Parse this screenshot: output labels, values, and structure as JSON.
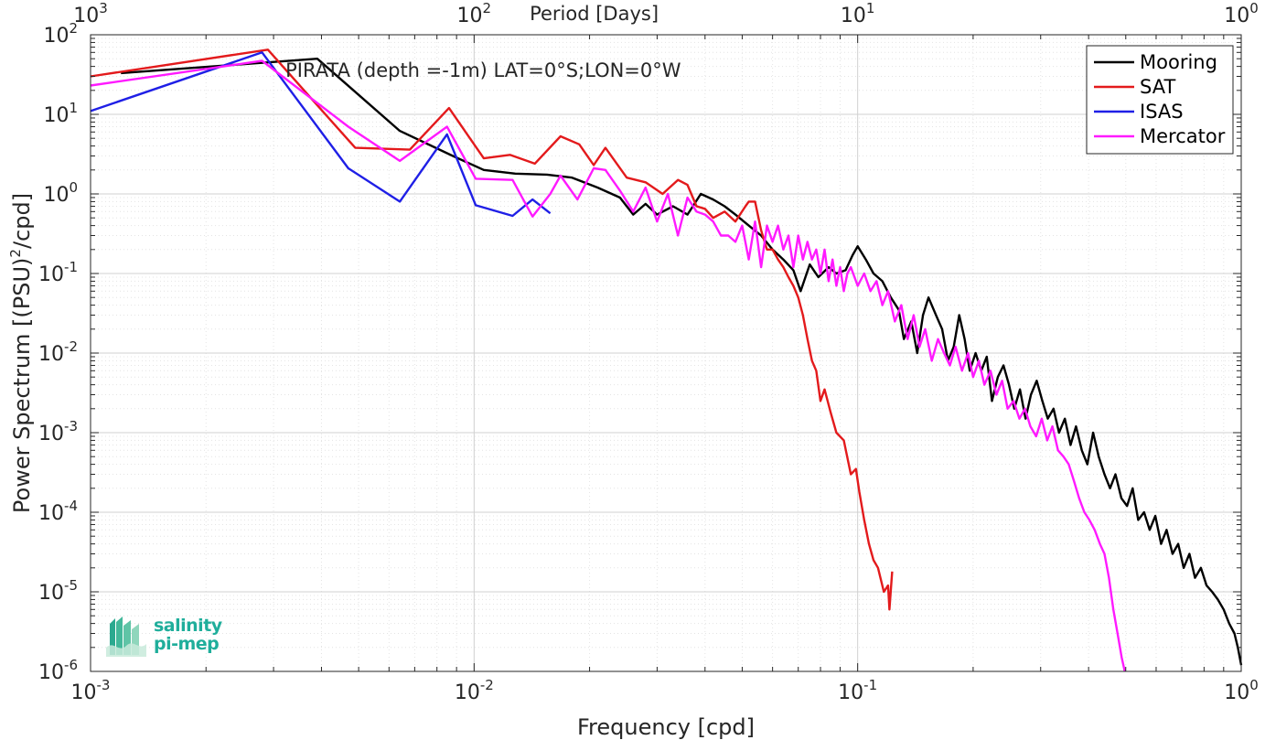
{
  "chart_data": {
    "type": "line",
    "title": "PIRATA (depth =-1m) LAT=0°S;LON=0°W",
    "xlabel": "Frequency [cpd]",
    "ylabel": "Power Spectrum [(PSU)^2/cpd]",
    "top_axis_label": "Period [Days]",
    "xscale": "log",
    "yscale": "log",
    "xlim": [
      0.001,
      1
    ],
    "ylim": [
      1e-06,
      100
    ],
    "grid": true,
    "legend_position": "top-right",
    "x_ticks": [
      {
        "value": 0.001,
        "base": "10",
        "exp": "-3"
      },
      {
        "value": 0.01,
        "base": "10",
        "exp": "-2"
      },
      {
        "value": 0.1,
        "base": "10",
        "exp": "-1"
      },
      {
        "value": 1,
        "base": "10",
        "exp": "0"
      }
    ],
    "top_ticks": [
      {
        "value": 0.001,
        "base": "10",
        "exp": "3"
      },
      {
        "value": 0.01,
        "base": "10",
        "exp": "2"
      },
      {
        "value": 0.1,
        "base": "10",
        "exp": "1"
      },
      {
        "value": 1,
        "base": "10",
        "exp": "0"
      }
    ],
    "y_ticks": [
      {
        "value": 100,
        "base": "10",
        "exp": "2"
      },
      {
        "value": 10,
        "base": "10",
        "exp": "1"
      },
      {
        "value": 1,
        "base": "10",
        "exp": "0"
      },
      {
        "value": 0.1,
        "base": "10",
        "exp": "-1"
      },
      {
        "value": 0.01,
        "base": "10",
        "exp": "-2"
      },
      {
        "value": 0.001,
        "base": "10",
        "exp": "-3"
      },
      {
        "value": 0.0001,
        "base": "10",
        "exp": "-4"
      },
      {
        "value": 1e-05,
        "base": "10",
        "exp": "-5"
      },
      {
        "value": 1e-06,
        "base": "10",
        "exp": "-6"
      }
    ],
    "series": [
      {
        "name": "Mooring",
        "color": "#000000",
        "points": [
          [
            0.0012,
            33
          ],
          [
            0.0029,
            45
          ],
          [
            0.0039,
            50
          ],
          [
            0.0064,
            6.2
          ],
          [
            0.0088,
            3.0
          ],
          [
            0.0106,
            2.0
          ],
          [
            0.0128,
            1.8
          ],
          [
            0.0155,
            1.75
          ],
          [
            0.018,
            1.6
          ],
          [
            0.021,
            1.2
          ],
          [
            0.024,
            0.9
          ],
          [
            0.026,
            0.55
          ],
          [
            0.028,
            0.75
          ],
          [
            0.03,
            0.55
          ],
          [
            0.033,
            0.7
          ],
          [
            0.036,
            0.55
          ],
          [
            0.039,
            1.0
          ],
          [
            0.042,
            0.85
          ],
          [
            0.045,
            0.7
          ],
          [
            0.048,
            0.55
          ],
          [
            0.052,
            0.4
          ],
          [
            0.056,
            0.3
          ],
          [
            0.06,
            0.2
          ],
          [
            0.064,
            0.15
          ],
          [
            0.068,
            0.11
          ],
          [
            0.071,
            0.06
          ],
          [
            0.075,
            0.13
          ],
          [
            0.079,
            0.09
          ],
          [
            0.084,
            0.12
          ],
          [
            0.088,
            0.1
          ],
          [
            0.093,
            0.11
          ],
          [
            0.097,
            0.17
          ],
          [
            0.1,
            0.22
          ],
          [
            0.105,
            0.15
          ],
          [
            0.11,
            0.1
          ],
          [
            0.116,
            0.08
          ],
          [
            0.122,
            0.05
          ],
          [
            0.128,
            0.035
          ],
          [
            0.132,
            0.015
          ],
          [
            0.138,
            0.025
          ],
          [
            0.143,
            0.01
          ],
          [
            0.148,
            0.03
          ],
          [
            0.153,
            0.05
          ],
          [
            0.16,
            0.03
          ],
          [
            0.166,
            0.02
          ],
          [
            0.172,
            0.008
          ],
          [
            0.178,
            0.012
          ],
          [
            0.184,
            0.03
          ],
          [
            0.19,
            0.015
          ],
          [
            0.196,
            0.006
          ],
          [
            0.203,
            0.01
          ],
          [
            0.21,
            0.006
          ],
          [
            0.217,
            0.009
          ],
          [
            0.224,
            0.0025
          ],
          [
            0.232,
            0.005
          ],
          [
            0.24,
            0.007
          ],
          [
            0.248,
            0.004
          ],
          [
            0.256,
            0.002
          ],
          [
            0.265,
            0.0035
          ],
          [
            0.274,
            0.0015
          ],
          [
            0.283,
            0.003
          ],
          [
            0.293,
            0.0045
          ],
          [
            0.303,
            0.0025
          ],
          [
            0.313,
            0.0015
          ],
          [
            0.324,
            0.002
          ],
          [
            0.335,
            0.001
          ],
          [
            0.347,
            0.0015
          ],
          [
            0.359,
            0.0007
          ],
          [
            0.371,
            0.0012
          ],
          [
            0.384,
            0.0006
          ],
          [
            0.397,
            0.0004
          ],
          [
            0.411,
            0.001
          ],
          [
            0.425,
            0.0005
          ],
          [
            0.44,
            0.0003
          ],
          [
            0.455,
            0.0002
          ],
          [
            0.47,
            0.0003
          ],
          [
            0.487,
            0.00015
          ],
          [
            0.504,
            0.00012
          ],
          [
            0.521,
            0.0002
          ],
          [
            0.539,
            8e-05
          ],
          [
            0.558,
            0.0001
          ],
          [
            0.577,
            6e-05
          ],
          [
            0.597,
            9e-05
          ],
          [
            0.618,
            4e-05
          ],
          [
            0.639,
            6e-05
          ],
          [
            0.662,
            3e-05
          ],
          [
            0.685,
            4e-05
          ],
          [
            0.708,
            2e-05
          ],
          [
            0.733,
            3e-05
          ],
          [
            0.758,
            1.5e-05
          ],
          [
            0.785,
            2e-05
          ],
          [
            0.812,
            1.2e-05
          ],
          [
            0.84,
            1e-05
          ],
          [
            0.869,
            8e-06
          ],
          [
            0.9,
            6e-06
          ],
          [
            0.93,
            4e-06
          ],
          [
            0.96,
            3e-06
          ],
          [
            0.98,
            2e-06
          ],
          [
            1.0,
            1.2e-06
          ]
        ]
      },
      {
        "name": "SAT",
        "color": "#e31a1c",
        "points": [
          [
            0.001,
            30
          ],
          [
            0.0029,
            65
          ],
          [
            0.0038,
            15
          ],
          [
            0.0049,
            3.8
          ],
          [
            0.0068,
            3.6
          ],
          [
            0.0086,
            12
          ],
          [
            0.0106,
            2.8
          ],
          [
            0.0124,
            3.1
          ],
          [
            0.0144,
            2.4
          ],
          [
            0.0168,
            5.3
          ],
          [
            0.0188,
            4.2
          ],
          [
            0.0205,
            2.3
          ],
          [
            0.022,
            3.8
          ],
          [
            0.025,
            1.6
          ],
          [
            0.028,
            1.4
          ],
          [
            0.031,
            1.0
          ],
          [
            0.034,
            1.5
          ],
          [
            0.036,
            1.3
          ],
          [
            0.038,
            0.7
          ],
          [
            0.04,
            0.65
          ],
          [
            0.042,
            0.5
          ],
          [
            0.045,
            0.6
          ],
          [
            0.048,
            0.45
          ],
          [
            0.051,
            0.7
          ],
          [
            0.052,
            0.8
          ],
          [
            0.054,
            0.8
          ],
          [
            0.056,
            0.35
          ],
          [
            0.058,
            0.2
          ],
          [
            0.06,
            0.2
          ],
          [
            0.062,
            0.15
          ],
          [
            0.064,
            0.12
          ],
          [
            0.066,
            0.09
          ],
          [
            0.068,
            0.07
          ],
          [
            0.07,
            0.05
          ],
          [
            0.072,
            0.03
          ],
          [
            0.074,
            0.015
          ],
          [
            0.076,
            0.008
          ],
          [
            0.078,
            0.006
          ],
          [
            0.08,
            0.0025
          ],
          [
            0.082,
            0.0035
          ],
          [
            0.085,
            0.0018
          ],
          [
            0.088,
            0.001
          ],
          [
            0.092,
            0.0008
          ],
          [
            0.096,
            0.0003
          ],
          [
            0.099,
            0.00035
          ],
          [
            0.101,
            0.00018
          ],
          [
            0.104,
            8e-05
          ],
          [
            0.107,
            4e-05
          ],
          [
            0.11,
            2.5e-05
          ],
          [
            0.113,
            2e-05
          ],
          [
            0.117,
            1e-05
          ],
          [
            0.12,
            1.2e-05
          ],
          [
            0.121,
            6e-06
          ],
          [
            0.123,
            1.8e-05
          ]
        ]
      },
      {
        "name": "ISAS",
        "color": "#1f1fe6",
        "points": [
          [
            0.001,
            11
          ],
          [
            0.0028,
            60
          ],
          [
            0.0047,
            2.1
          ],
          [
            0.0064,
            0.8
          ],
          [
            0.0085,
            5.6
          ],
          [
            0.0101,
            0.72
          ],
          [
            0.0126,
            0.53
          ],
          [
            0.0142,
            0.85
          ],
          [
            0.0158,
            0.57
          ]
        ]
      },
      {
        "name": "Mercator",
        "color": "#ff1aff",
        "points": [
          [
            0.001,
            23
          ],
          [
            0.0028,
            47
          ],
          [
            0.0047,
            7.0
          ],
          [
            0.0064,
            2.6
          ],
          [
            0.0085,
            7.0
          ],
          [
            0.0101,
            1.55
          ],
          [
            0.0126,
            1.5
          ],
          [
            0.0142,
            0.52
          ],
          [
            0.0158,
            1.0
          ],
          [
            0.0168,
            1.7
          ],
          [
            0.0186,
            0.85
          ],
          [
            0.0205,
            2.1
          ],
          [
            0.022,
            2.0
          ],
          [
            0.024,
            1.1
          ],
          [
            0.026,
            0.6
          ],
          [
            0.028,
            1.2
          ],
          [
            0.03,
            0.45
          ],
          [
            0.032,
            1.0
          ],
          [
            0.034,
            0.3
          ],
          [
            0.036,
            0.9
          ],
          [
            0.038,
            0.6
          ],
          [
            0.04,
            0.55
          ],
          [
            0.042,
            0.45
          ],
          [
            0.044,
            0.3
          ],
          [
            0.046,
            0.3
          ],
          [
            0.048,
            0.25
          ],
          [
            0.05,
            0.4
          ],
          [
            0.052,
            0.15
          ],
          [
            0.054,
            0.45
          ],
          [
            0.056,
            0.12
          ],
          [
            0.058,
            0.4
          ],
          [
            0.06,
            0.25
          ],
          [
            0.062,
            0.4
          ],
          [
            0.064,
            0.2
          ],
          [
            0.066,
            0.3
          ],
          [
            0.068,
            0.12
          ],
          [
            0.07,
            0.3
          ],
          [
            0.072,
            0.15
          ],
          [
            0.074,
            0.25
          ],
          [
            0.076,
            0.15
          ],
          [
            0.078,
            0.2
          ],
          [
            0.08,
            0.1
          ],
          [
            0.082,
            0.2
          ],
          [
            0.084,
            0.08
          ],
          [
            0.086,
            0.15
          ],
          [
            0.088,
            0.07
          ],
          [
            0.09,
            0.12
          ],
          [
            0.092,
            0.06
          ],
          [
            0.094,
            0.1
          ],
          [
            0.096,
            0.12
          ],
          [
            0.1,
            0.07
          ],
          [
            0.104,
            0.1
          ],
          [
            0.108,
            0.06
          ],
          [
            0.112,
            0.08
          ],
          [
            0.116,
            0.04
          ],
          [
            0.12,
            0.06
          ],
          [
            0.125,
            0.025
          ],
          [
            0.13,
            0.04
          ],
          [
            0.135,
            0.015
          ],
          [
            0.14,
            0.03
          ],
          [
            0.145,
            0.012
          ],
          [
            0.15,
            0.02
          ],
          [
            0.156,
            0.008
          ],
          [
            0.162,
            0.015
          ],
          [
            0.168,
            0.01
          ],
          [
            0.174,
            0.007
          ],
          [
            0.18,
            0.012
          ],
          [
            0.187,
            0.006
          ],
          [
            0.194,
            0.01
          ],
          [
            0.2,
            0.005
          ],
          [
            0.207,
            0.008
          ],
          [
            0.214,
            0.004
          ],
          [
            0.222,
            0.006
          ],
          [
            0.23,
            0.003
          ],
          [
            0.238,
            0.0045
          ],
          [
            0.246,
            0.002
          ],
          [
            0.255,
            0.0025
          ],
          [
            0.264,
            0.0015
          ],
          [
            0.273,
            0.002
          ],
          [
            0.282,
            0.0012
          ],
          [
            0.292,
            0.0009
          ],
          [
            0.302,
            0.0015
          ],
          [
            0.312,
            0.0008
          ],
          [
            0.322,
            0.0012
          ],
          [
            0.333,
            0.0006
          ],
          [
            0.344,
            0.0005
          ],
          [
            0.355,
            0.0004
          ],
          [
            0.366,
            0.00025
          ],
          [
            0.378,
            0.00015
          ],
          [
            0.39,
            0.0001
          ],
          [
            0.402,
            8e-05
          ],
          [
            0.415,
            6e-05
          ],
          [
            0.428,
            4e-05
          ],
          [
            0.44,
            3e-05
          ],
          [
            0.452,
            1.5e-05
          ],
          [
            0.464,
            6e-06
          ],
          [
            0.476,
            3e-06
          ],
          [
            0.488,
            1.5e-06
          ],
          [
            0.497,
            1e-06
          ]
        ]
      }
    ]
  },
  "logo": {
    "line1": "salinity",
    "line2": "pi-mep"
  }
}
